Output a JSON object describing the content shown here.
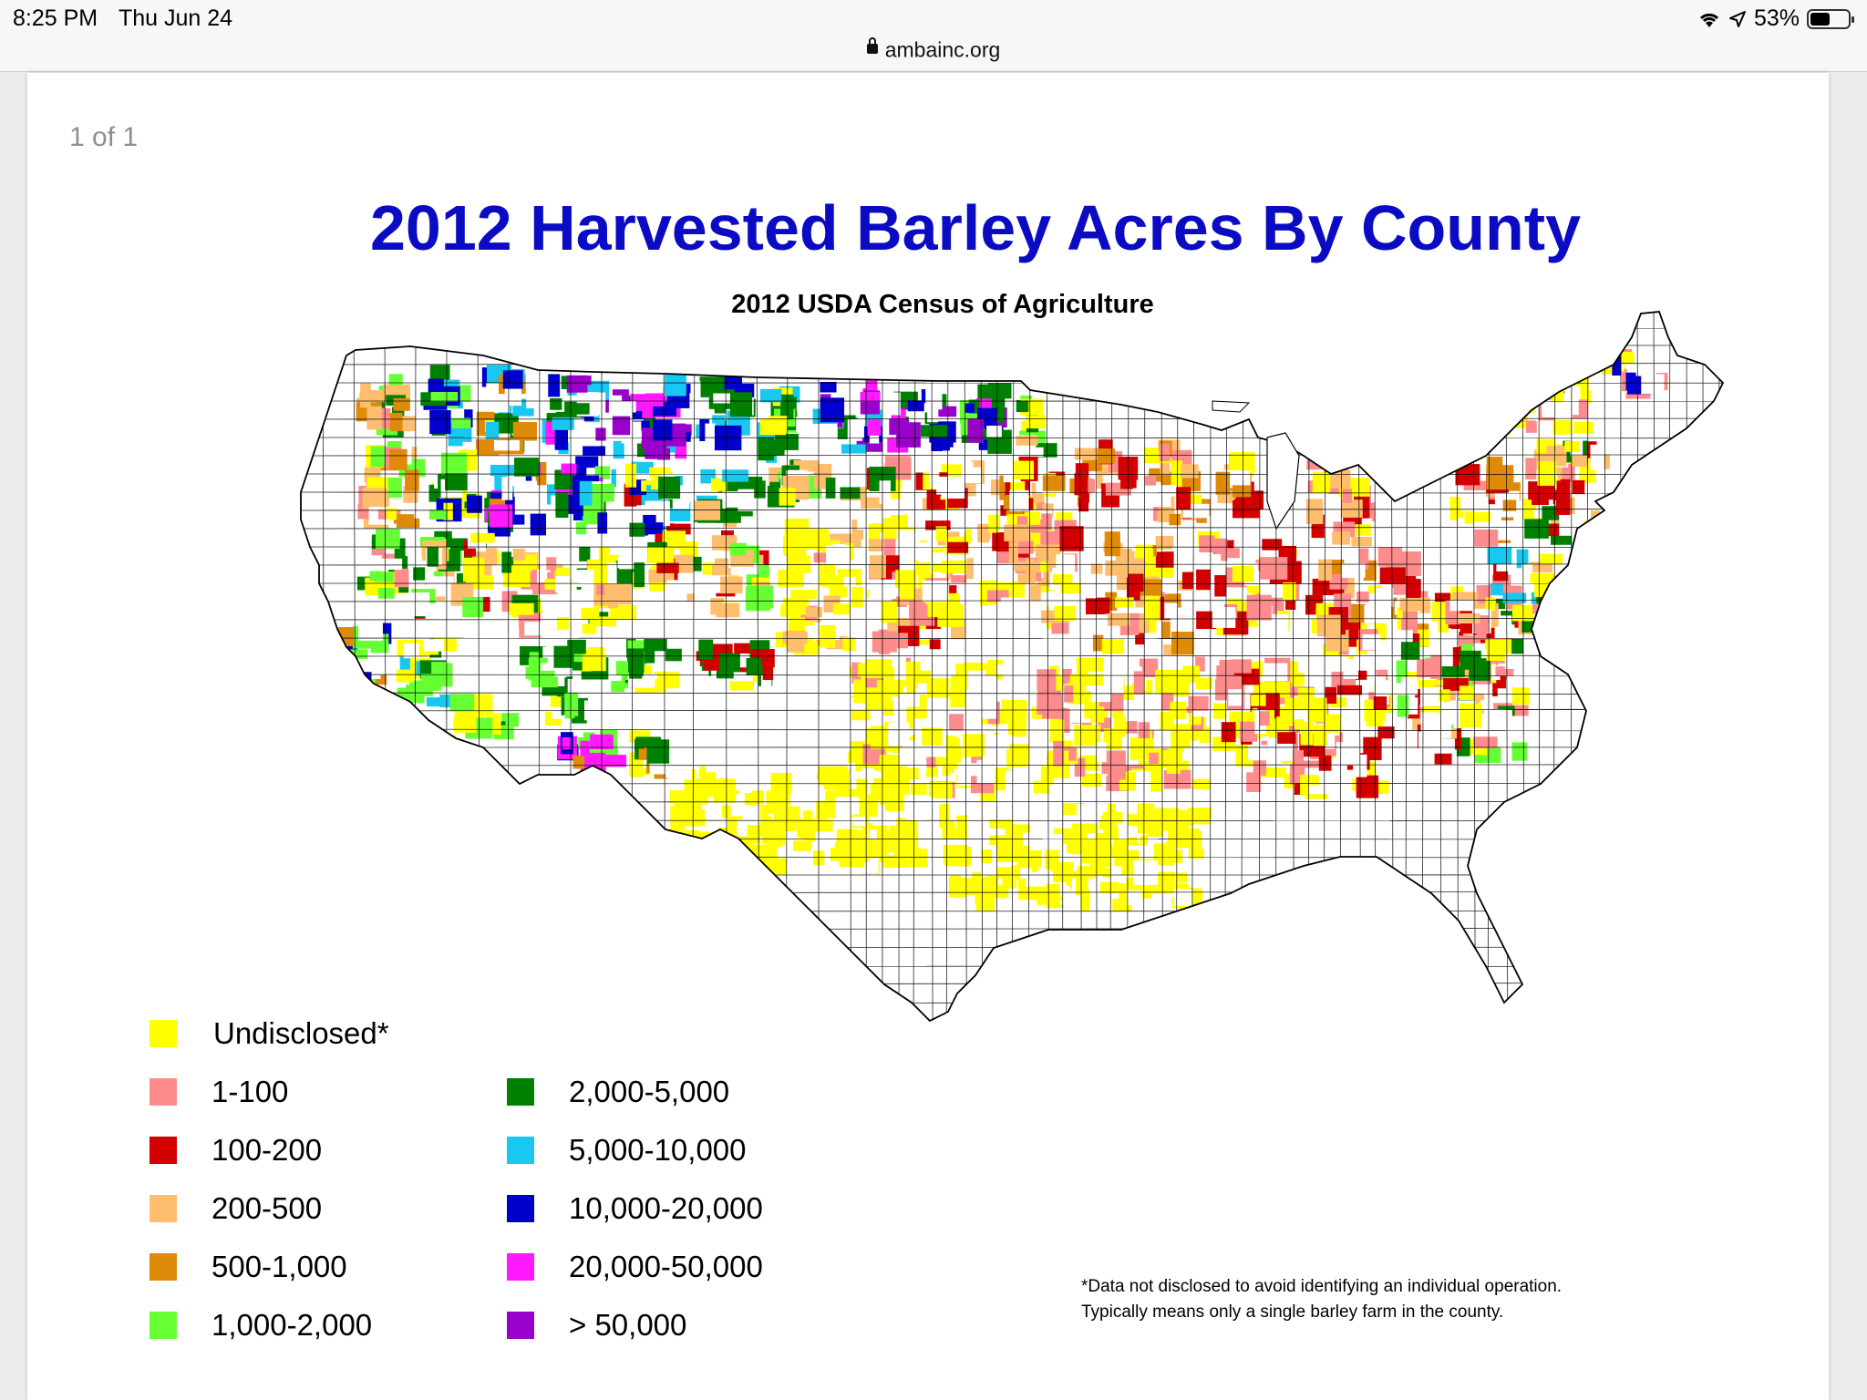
{
  "status_bar": {
    "time": "8:25 PM",
    "date": "Thu Jun 24",
    "battery_text": "53%",
    "battery_level": 0.53,
    "icons": [
      "wifi-icon",
      "location-arrow-icon",
      "battery-icon"
    ]
  },
  "url_bar": {
    "url": "ambainc.org",
    "icon": "lock-icon"
  },
  "viewer": {
    "page_count": "1 of 1"
  },
  "map": {
    "title": "2012 Harvested Barley Acres By County",
    "subtitle": "2012 USDA Census of Agriculture",
    "region": "Contiguous United States, by county",
    "legend": [
      {
        "label": "Undisclosed*",
        "color": "#ffff00"
      },
      {
        "label": "1-100",
        "color": "#ff8c8c"
      },
      {
        "label": "100-200",
        "color": "#d20000"
      },
      {
        "label": "200-500",
        "color": "#ffbe6e"
      },
      {
        "label": "500-1,000",
        "color": "#e08a0a"
      },
      {
        "label": "1,000-2,000",
        "color": "#66ff33"
      },
      {
        "label": "2,000-5,000",
        "color": "#008000"
      },
      {
        "label": "5,000-10,000",
        "color": "#19c8f0"
      },
      {
        "label": "10,000-20,000",
        "color": "#0000cc"
      },
      {
        "label": "20,000-50,000",
        "color": "#ff19ff"
      },
      {
        "label": "> 50,000",
        "color": "#9900cc"
      }
    ],
    "footnote_lines": [
      "*Data not disclosed to avoid identifying an individual operation.",
      "Typically means only a single barley farm in the county."
    ]
  }
}
